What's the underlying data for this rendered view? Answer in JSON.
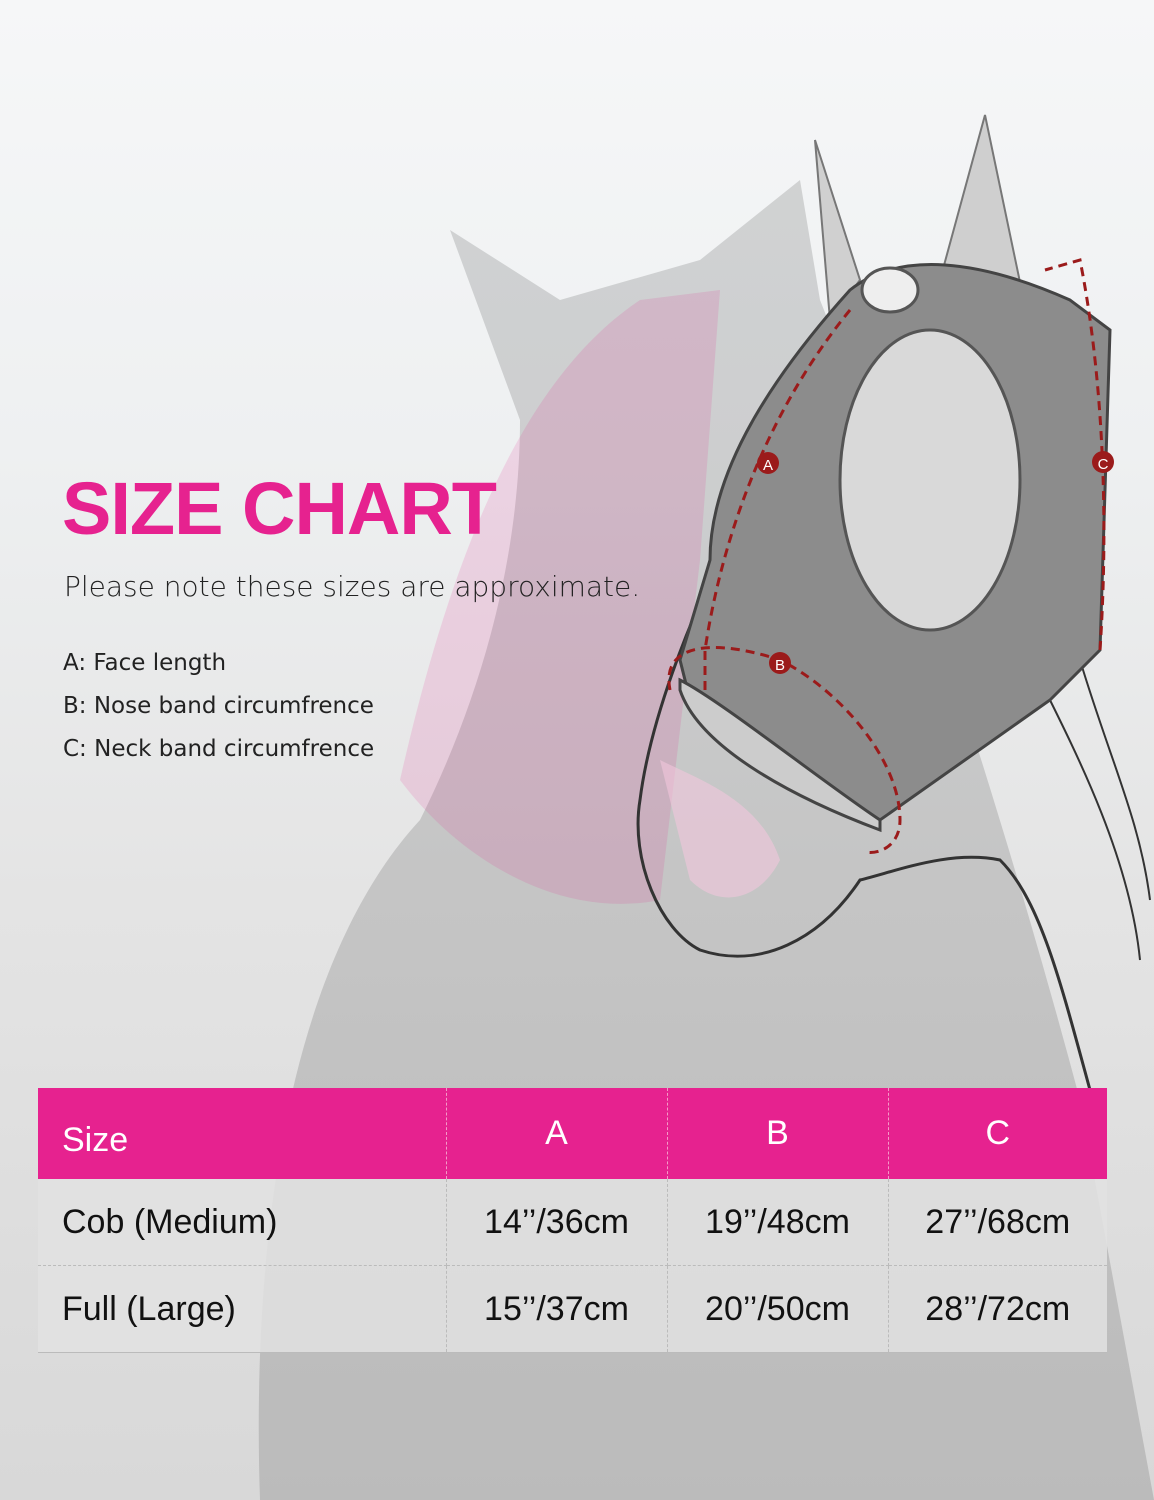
{
  "title": "SIZE CHART",
  "note": "Please note these sizes are approximate.",
  "legend": [
    "A: Face length",
    "B: Nose band circumfrence",
    "C: Neck band circumfrence"
  ],
  "diagram": {
    "markers": [
      "A",
      "B",
      "C"
    ],
    "arrow_color": "#9b1b1b"
  },
  "colors": {
    "accent": "#e6228f"
  },
  "table": {
    "headers": [
      "Size",
      "A",
      "B",
      "C"
    ],
    "rows": [
      [
        "Cob (Medium)",
        "14’’/36cm",
        "19’’/48cm",
        "27’’/68cm"
      ],
      [
        "Full (Large)",
        "15’’/37cm",
        "20’’/50cm",
        "28’’/72cm"
      ]
    ]
  }
}
